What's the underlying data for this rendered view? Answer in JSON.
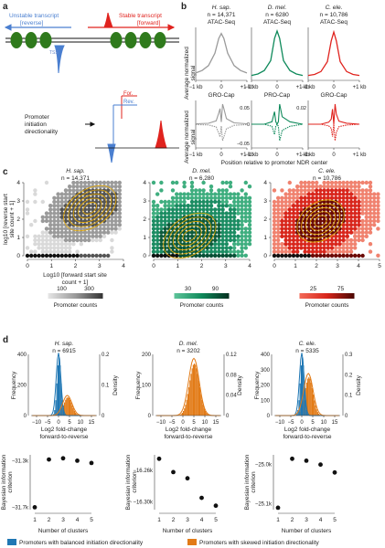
{
  "panel_letters": [
    "a",
    "b",
    "c",
    "d"
  ],
  "colors": {
    "blue": "#4a7fd0",
    "red": "#e0231e",
    "green": "#0f8a5b",
    "grey": "#9a9a9a",
    "orange": "#e27b17",
    "contour": "#e5a800",
    "dark": "#0b5b1c"
  },
  "panel_a": {
    "unstable_label_line1": "Unstable transcript",
    "unstable_label_line2": "[reverse]",
    "stable_label_line1": "Stable transcript",
    "stable_label_line2": "[forward]",
    "tss_mark": "TSS",
    "directionality_line1": "Promoter",
    "directionality_line2": "initiation",
    "directionality_line3": "directionality",
    "for_label": "For.",
    "rev_label": "Rev."
  },
  "species": [
    {
      "name": "H. sap.",
      "n_label": "n = 14,371"
    },
    {
      "name": "D. mel.",
      "n_label": "n = 6280"
    },
    {
      "name": "C. ele.",
      "n_label": "n = 10,786"
    }
  ],
  "panel_b": {
    "top_assays": [
      "ATAC-Seq",
      "ATAC-Seq",
      "ATAC-Seq"
    ],
    "bottom_assays": [
      "GRO-Cap",
      "PRO-Cap",
      "GRO-Cap"
    ],
    "ylabel": "Average normalized signal",
    "xticks": [
      "−1 kb",
      "0",
      "+1 kb"
    ],
    "xlabel": "Position relative to promoter NDR center",
    "dm_bottom_yticks": [
      "0.05",
      "0",
      "−0.05"
    ],
    "ce_bottom_ytick": "0.02"
  },
  "panel_c": {
    "species_n": [
      "n = 14,371",
      "n = 6,280",
      "n = 10,786"
    ],
    "ylabel_line1": "log10 [reverse start",
    "ylabel_line2": "site count + 1]",
    "xlabel_line1": "Log10 [forward start site",
    "xlabel_line2": "count + 1]",
    "xticks_h": [
      "0",
      "1",
      "2",
      "3",
      "4"
    ],
    "xticks_d": [
      "0",
      "1",
      "2",
      "3",
      "4"
    ],
    "xticks_c": [
      "0",
      "1",
      "2",
      "3",
      "4",
      "5"
    ],
    "yticks": [
      "0",
      "1",
      "2",
      "3",
      "4"
    ],
    "colorbar_title": "Promoter counts",
    "colorbar_h_ticks": [
      "100",
      "300"
    ],
    "colorbar_d_ticks": [
      "30",
      "90"
    ],
    "colorbar_c_ticks": [
      "25",
      "75"
    ]
  },
  "panel_d": {
    "species_n": [
      "n = 6915",
      "n = 3202",
      "n = 5335"
    ],
    "ylabel_freq": "Frequency",
    "ylabel_density": "Density",
    "xlabel_line1": "Log2 fold-change",
    "xlabel_line2": "forward-to-reverse",
    "bic_ylabel_line1": "Bayesian information",
    "bic_ylabel_line2": "criterion",
    "bic_xlabel": "Number of clusters",
    "legend_balanced": "Promoters with balanced initiation directionality",
    "legend_skewed": "Promoters with skewed initiation directionality"
  },
  "chart_data": [
    {
      "type": "line",
      "title": "b: ATAC-Seq average profiles",
      "x": [
        -1,
        -0.75,
        -0.5,
        -0.25,
        -0.1,
        0,
        0.1,
        0.25,
        0.5,
        0.75,
        1
      ],
      "xlabel": "Position relative to promoter NDR center",
      "series": [
        {
          "name": "H. sap.",
          "values": [
            0.15,
            0.2,
            0.3,
            0.55,
            0.85,
            0.95,
            0.85,
            0.55,
            0.3,
            0.2,
            0.15
          ]
        },
        {
          "name": "D. mel.",
          "values": [
            0.1,
            0.13,
            0.2,
            0.4,
            0.85,
            1.0,
            0.85,
            0.4,
            0.2,
            0.13,
            0.1
          ]
        },
        {
          "name": "C. ele.",
          "values": [
            0.1,
            0.12,
            0.18,
            0.38,
            0.8,
            0.98,
            0.8,
            0.38,
            0.18,
            0.12,
            0.1
          ]
        }
      ]
    },
    {
      "type": "line",
      "title": "b: GRO-Cap / PRO-Cap average profiles",
      "x": [
        -1,
        -0.5,
        -0.2,
        -0.1,
        -0.05,
        0,
        0.05,
        0.1,
        0.2,
        0.5,
        1
      ],
      "series": [
        {
          "name": "H. sap. forward",
          "values": [
            0.02,
            0.04,
            0.15,
            0.5,
            0.7,
            0.1,
            0.9,
            0.7,
            0.25,
            0.06,
            0.02
          ]
        },
        {
          "name": "D. mel. forward",
          "values": [
            0.0,
            0.0,
            0.01,
            0.05,
            0.01,
            0.0,
            0.01,
            0.08,
            0.03,
            0.01,
            0.0
          ]
        },
        {
          "name": "C. ele. forward",
          "values": [
            0.0,
            0.0,
            0.002,
            0.005,
            0.015,
            0.0,
            0.02,
            0.01,
            0.003,
            0.001,
            0.0
          ]
        }
      ]
    },
    {
      "type": "heatmap",
      "title": "c: reverse vs forward start site counts",
      "xlabel": "Log10 [forward start site count + 1]",
      "ylabel": "log10 [reverse start site count + 1]",
      "panels": [
        {
          "species": "H. sap.",
          "xlim": [
            0,
            4
          ],
          "ylim": [
            0,
            4
          ],
          "density_center": [
            2.6,
            2.6
          ],
          "colorbar": [
            100,
            300
          ]
        },
        {
          "species": "D. mel.",
          "xlim": [
            0,
            4
          ],
          "ylim": [
            0,
            4
          ],
          "density_center": [
            1.5,
            1.1
          ],
          "colorbar": [
            30,
            90
          ]
        },
        {
          "species": "C. ele.",
          "xlim": [
            0,
            5
          ],
          "ylim": [
            0,
            4
          ],
          "density_center": [
            2.2,
            1.9
          ],
          "colorbar": [
            25,
            75
          ]
        }
      ]
    },
    {
      "type": "bar",
      "title": "d: log2 fold-change forward-to-reverse histograms",
      "xlabel": "Log2 fold-change forward-to-reverse",
      "panels": [
        {
          "species": "H. sap.",
          "xticks": [
            -10,
            -5,
            0,
            5,
            10,
            15
          ],
          "yticks_freq": [
            0,
            200,
            400
          ],
          "yticks_density": [
            0,
            0.1,
            0.2
          ],
          "balanced_peak": [
            0,
            380
          ],
          "skewed_peak": [
            4,
            120
          ]
        },
        {
          "species": "D. mel.",
          "xticks": [
            -10,
            -5,
            0,
            5,
            10,
            15
          ],
          "yticks_freq": [
            0,
            100,
            200
          ],
          "yticks_density": [
            0,
            0.04,
            0.08,
            0.12
          ],
          "skewed_peak": [
            5,
            170
          ]
        },
        {
          "species": "C. ele.",
          "xticks": [
            -10,
            -5,
            0,
            5,
            10,
            15
          ],
          "yticks_freq": [
            0,
            100,
            200,
            300,
            400
          ],
          "yticks_density": [
            0,
            0.1,
            0.2,
            0.3
          ],
          "balanced_peak": [
            0,
            380
          ],
          "skewed_peak": [
            3,
            250
          ]
        }
      ]
    },
    {
      "type": "scatter",
      "title": "d: BIC vs number of clusters",
      "xlabel": "Number of clusters",
      "panels": [
        {
          "species": "H. sap.",
          "x": [
            1,
            2,
            3,
            4,
            5
          ],
          "y": [
            -31.7,
            -31.29,
            -31.28,
            -31.3,
            -31.32
          ],
          "yticks": [
            "−31.3k",
            "−31.7k"
          ],
          "ylim": [
            -31.72,
            -31.25
          ]
        },
        {
          "species": "D. mel.",
          "x": [
            1,
            2,
            3,
            4,
            5
          ],
          "y": [
            -16.245,
            -16.262,
            -16.27,
            -16.295,
            -16.305
          ],
          "yticks": [
            "−16.26k",
            "−16.30k"
          ],
          "ylim": [
            -16.31,
            -16.24
          ]
        },
        {
          "species": "C. ele.",
          "x": [
            1,
            2,
            3,
            4,
            5
          ],
          "y": [
            -25.11,
            -24.985,
            -24.99,
            -25.0,
            -25.02
          ],
          "yticks": [
            "−25.0k",
            "−25.1k"
          ],
          "ylim": [
            -25.115,
            -24.975
          ]
        }
      ]
    }
  ]
}
